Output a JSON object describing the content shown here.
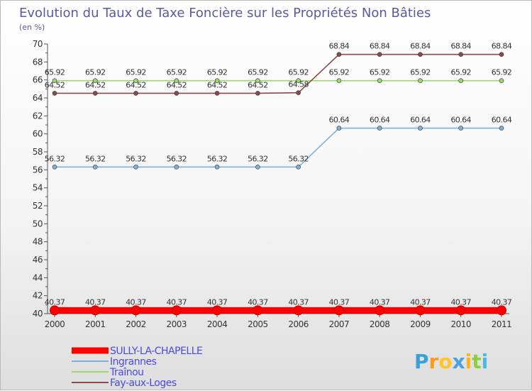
{
  "chart_data": {
    "type": "line",
    "title": "Evolution du Taux de Taxe Foncière sur les Propriétés Non Bâties",
    "subtitle": "(en %)",
    "xlabel": "",
    "ylabel": "",
    "ylim": [
      40,
      70
    ],
    "y_ticks": [
      "40",
      "42",
      "44",
      "46",
      "48",
      "50",
      "52",
      "54",
      "56",
      "58",
      "60",
      "62",
      "64",
      "66",
      "68",
      "70"
    ],
    "categories": [
      "2000",
      "2001",
      "2002",
      "2003",
      "2004",
      "2005",
      "2006",
      "2007",
      "2008",
      "2009",
      "2010",
      "2011"
    ],
    "series": [
      {
        "name": "SULLY-LA-CHAPELLE",
        "color": "#ff0000",
        "values": [
          40.37,
          40.37,
          40.37,
          40.37,
          40.37,
          40.37,
          40.37,
          40.37,
          40.37,
          40.37,
          40.37,
          40.37
        ],
        "labels": [
          "40.37",
          "40.37",
          "40.37",
          "40.37",
          "40.37",
          "40.37",
          "40.37",
          "40.37",
          "40.37",
          "40.37",
          "40.37",
          "40.37"
        ]
      },
      {
        "name": "Ingrannes",
        "color": "#7eb0d9",
        "values": [
          56.32,
          56.32,
          56.32,
          56.32,
          56.32,
          56.32,
          56.32,
          60.64,
          60.64,
          60.64,
          60.64,
          60.64
        ],
        "labels": [
          "56.32",
          "56.32",
          "56.32",
          "56.32",
          "56.32",
          "56.32",
          "56.32",
          "60.64",
          "60.64",
          "60.64",
          "60.64",
          "60.64"
        ]
      },
      {
        "name": "Traînou",
        "color": "#9ad86c",
        "values": [
          65.92,
          65.92,
          65.92,
          65.92,
          65.92,
          65.92,
          65.92,
          65.92,
          65.92,
          65.92,
          65.92,
          65.92
        ],
        "labels": [
          "65.92",
          "65.92",
          "65.92",
          "65.92",
          "65.92",
          "65.92",
          "65.92",
          "65.92",
          "65.92",
          "65.92",
          "65.92",
          "65.92"
        ]
      },
      {
        "name": "Fay-aux-Loges",
        "color": "#8b4a4a",
        "values": [
          64.52,
          64.52,
          64.52,
          64.52,
          64.52,
          64.52,
          64.58,
          68.84,
          68.84,
          68.84,
          68.84,
          68.84
        ],
        "labels": [
          "64.52",
          "64.52",
          "64.52",
          "64.52",
          "64.52",
          "64.52",
          "64.58",
          "68.84",
          "68.84",
          "68.84",
          "68.84",
          "68.84"
        ]
      }
    ],
    "legend_position": "bottom-left",
    "grid": false
  },
  "branding": {
    "letters": [
      "P",
      "r",
      "o",
      "x",
      "i",
      "t",
      "i"
    ],
    "colors": [
      "#3aa0d8",
      "#ff9a1a",
      "#ffc52b",
      "#4aa0e0",
      "#ffb31f",
      "#8ccf3f",
      "#4fb7e8"
    ]
  }
}
